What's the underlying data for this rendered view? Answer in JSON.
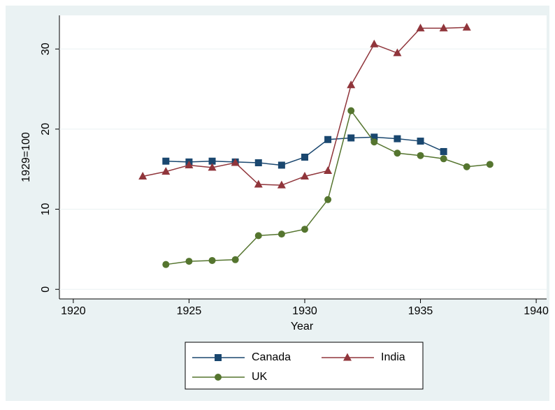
{
  "chart_data": {
    "type": "line",
    "x": [
      1923,
      1924,
      1925,
      1926,
      1927,
      1928,
      1929,
      1930,
      1931,
      1932,
      1933,
      1934,
      1935,
      1936,
      1937,
      1938
    ],
    "xlabel": "Year",
    "ylabel": "1929=100",
    "series": [
      {
        "name": "Canada",
        "color": "#1a476f",
        "marker": "square",
        "values": [
          null,
          16.0,
          15.9,
          16.0,
          15.9,
          15.8,
          15.5,
          16.5,
          18.7,
          18.9,
          19.0,
          18.8,
          18.5,
          17.2,
          null,
          null
        ]
      },
      {
        "name": "India",
        "color": "#90353b",
        "marker": "triangle",
        "values": [
          14.1,
          14.7,
          15.5,
          15.2,
          15.8,
          13.1,
          13.0,
          14.1,
          14.8,
          25.5,
          30.6,
          29.5,
          32.6,
          32.6,
          32.7,
          null
        ]
      },
      {
        "name": "UK",
        "color": "#55752f",
        "marker": "circle",
        "values": [
          null,
          3.1,
          3.5,
          3.6,
          3.7,
          6.7,
          6.9,
          7.5,
          11.2,
          22.3,
          18.4,
          17.0,
          16.7,
          16.3,
          15.3,
          15.6
        ]
      }
    ],
    "xlim": [
      1919.4,
      1940.45
    ],
    "xticks": [
      1920,
      1925,
      1930,
      1935,
      1940
    ],
    "ylim": [
      -1.2,
      34.2
    ],
    "yticks": [
      0,
      10,
      20,
      30
    ],
    "grid": true,
    "legend": "bottom"
  }
}
